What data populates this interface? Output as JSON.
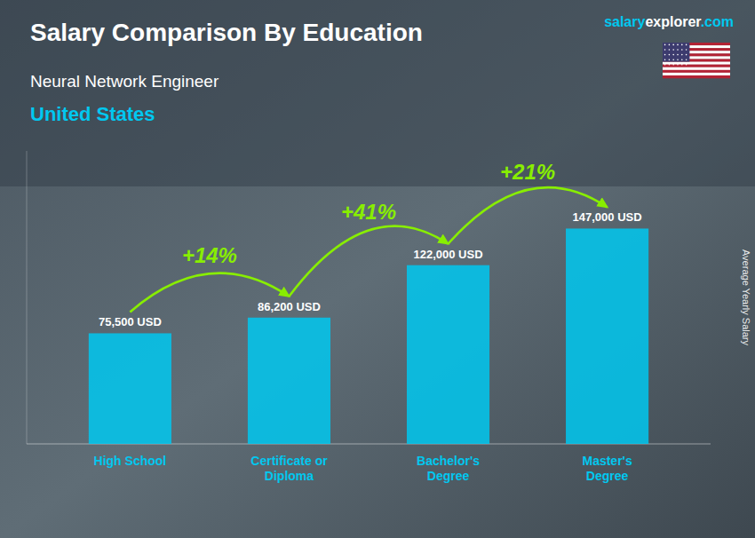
{
  "chart_data": {
    "type": "bar",
    "title": "Salary Comparison By Education",
    "subtitle": "Neural Network Engineer",
    "country": "United States",
    "y_label": "Average Yearly Salary",
    "categories": [
      "High School",
      "Certificate or\nDiploma",
      "Bachelor's\nDegree",
      "Master's\nDegree"
    ],
    "values": [
      75500,
      86200,
      122000,
      147000
    ],
    "value_labels": [
      "75,500 USD",
      "86,200 USD",
      "122,000 USD",
      "147,000 USD"
    ],
    "data_labels": true,
    "color": "#00c8f0",
    "ylim": [
      0,
      200000
    ],
    "tick_labels": "x",
    "grid": false,
    "annotations": [
      {
        "text": "+14%",
        "color": "#88ee00"
      },
      {
        "text": "+41%",
        "color": "#88ee00"
      },
      {
        "text": "+21%",
        "color": "#88ee00"
      }
    ],
    "watermark": [
      "salary",
      "explorer",
      ".com"
    ]
  }
}
